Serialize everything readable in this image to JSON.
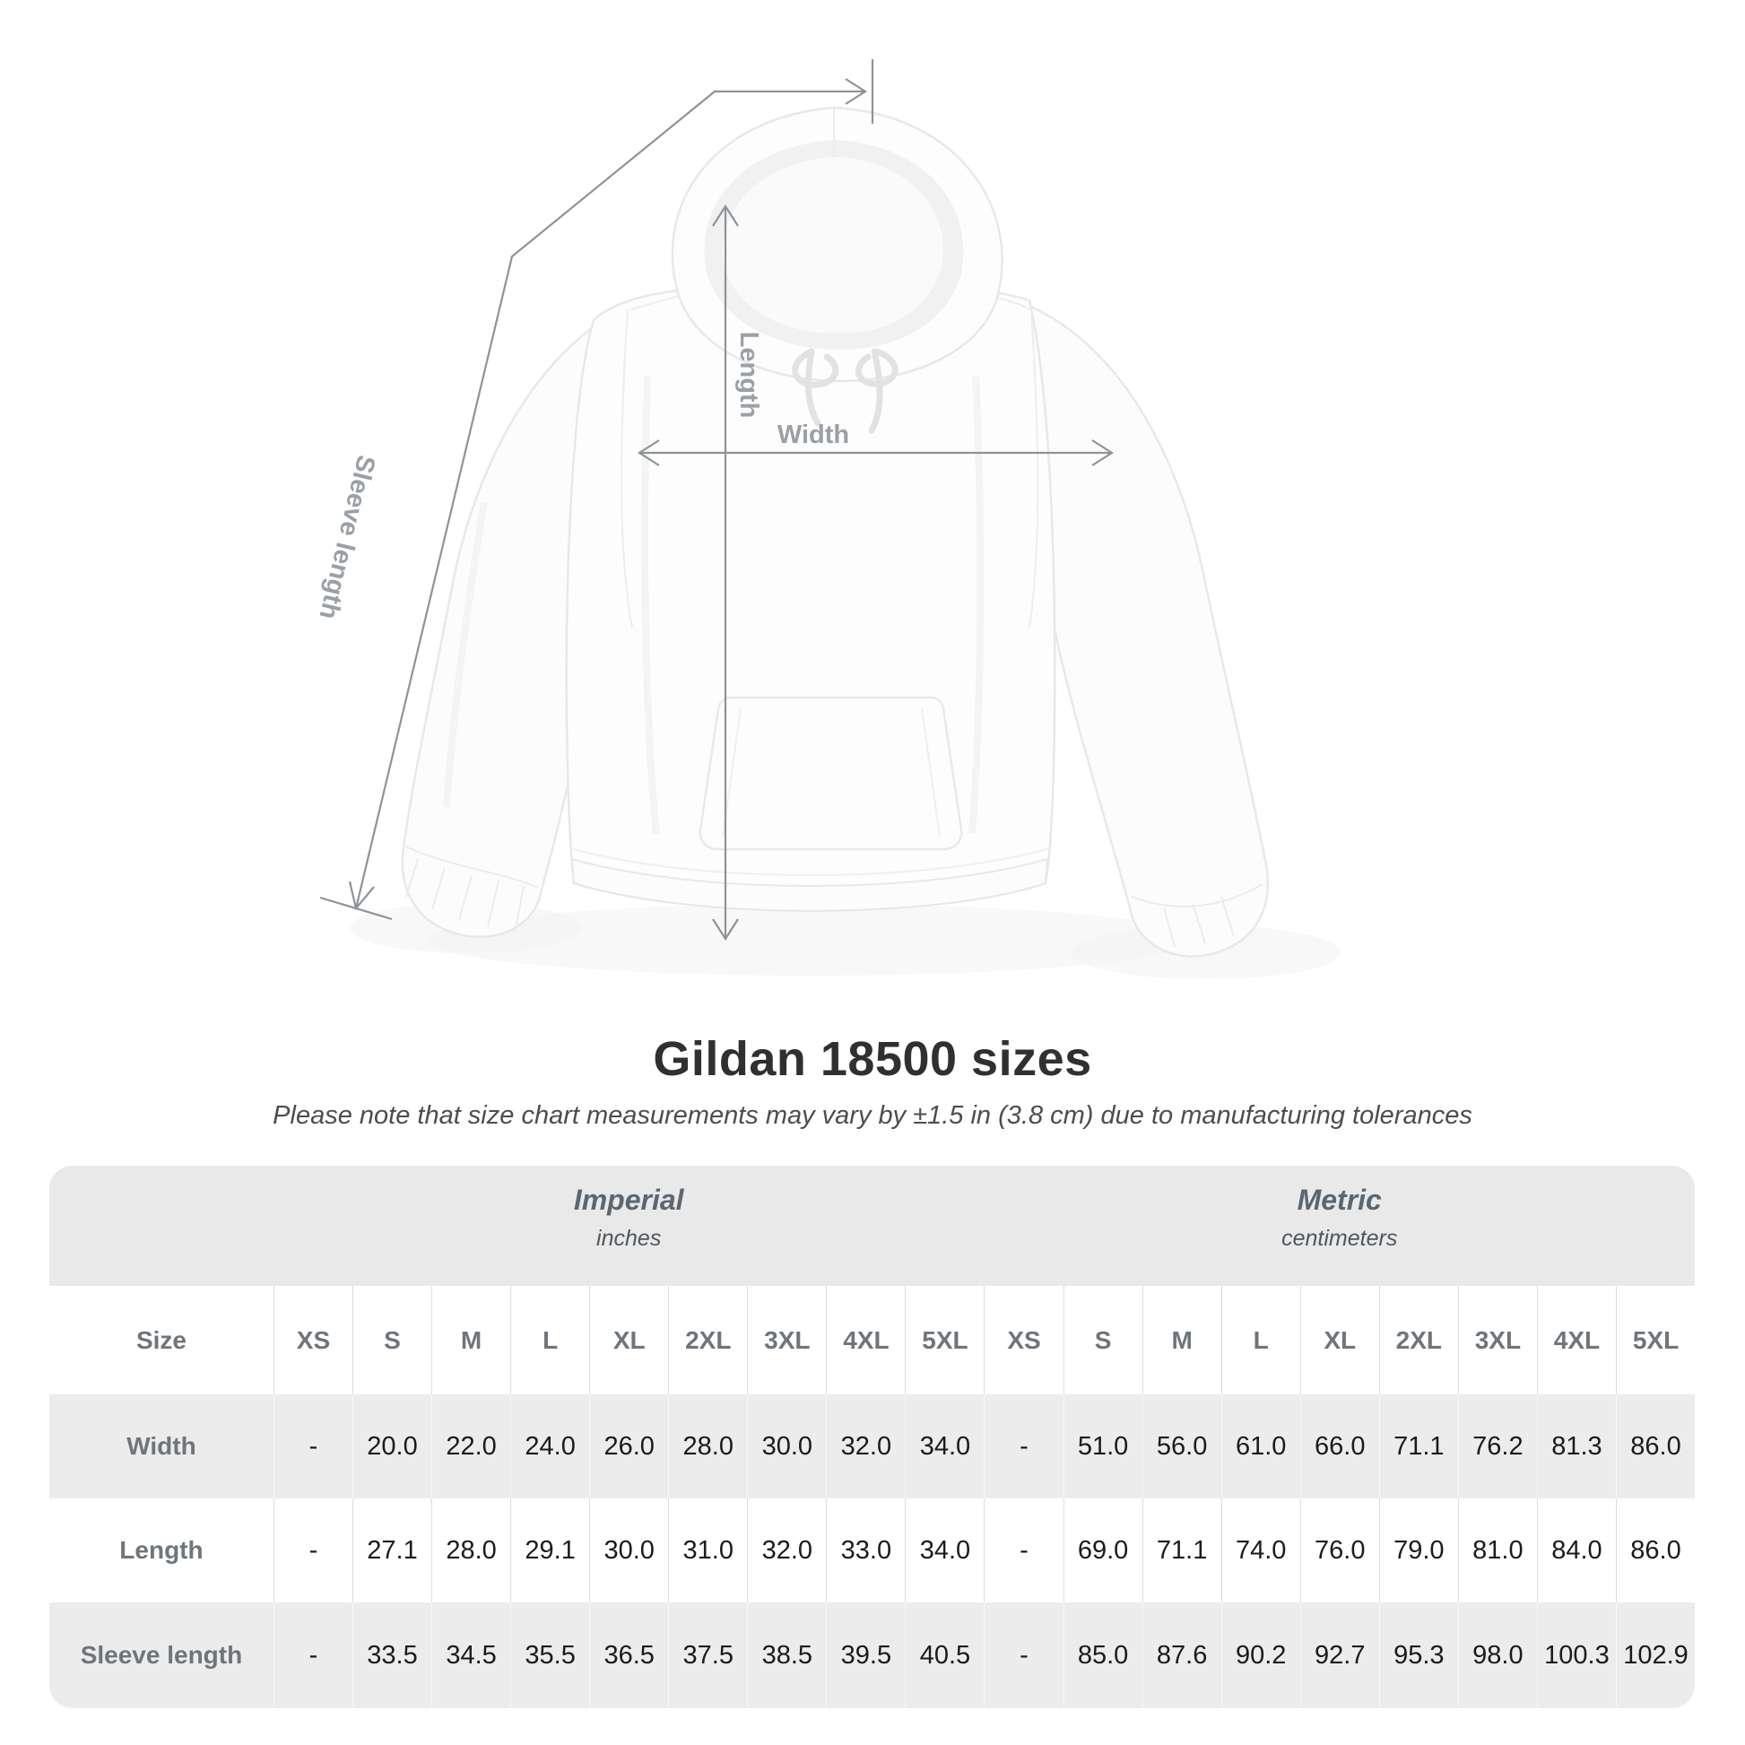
{
  "title": "Gildan 18500 sizes",
  "subtitle": "Please note that size chart measurements may vary by ±1.5 in (3.8 cm) due to manufacturing tolerances",
  "diagram": {
    "labels": {
      "sleeve_length": "Sleeve length",
      "length": "Length",
      "width": "Width"
    },
    "line_color": "#8e9397",
    "label_color": "#9aa0a5"
  },
  "table": {
    "size_header": "Size",
    "sizes": [
      "XS",
      "S",
      "M",
      "L",
      "XL",
      "2XL",
      "3XL",
      "4XL",
      "5XL"
    ],
    "unit_groups": [
      {
        "name": "Imperial",
        "unit": "inches"
      },
      {
        "name": "Metric",
        "unit": "centimeters"
      }
    ],
    "rows": [
      {
        "key": "width",
        "label": "Width",
        "imperial": [
          "-",
          "20.0",
          "22.0",
          "24.0",
          "26.0",
          "28.0",
          "30.0",
          "32.0",
          "34.0"
        ],
        "metric": [
          "-",
          "51.0",
          "56.0",
          "61.0",
          "66.0",
          "71.1",
          "76.2",
          "81.3",
          "86.0"
        ]
      },
      {
        "key": "length",
        "label": "Length",
        "imperial": [
          "-",
          "27.1",
          "28.0",
          "29.1",
          "30.0",
          "31.0",
          "32.0",
          "33.0",
          "34.0"
        ],
        "metric": [
          "-",
          "69.0",
          "71.1",
          "74.0",
          "76.0",
          "79.0",
          "81.0",
          "84.0",
          "86.0"
        ]
      },
      {
        "key": "sleeve-length",
        "label": "Sleeve length",
        "imperial": [
          "-",
          "33.5",
          "34.5",
          "35.5",
          "36.5",
          "37.5",
          "38.5",
          "39.5",
          "40.5"
        ],
        "metric": [
          "-",
          "85.0",
          "87.6",
          "90.2",
          "92.7",
          "95.3",
          "98.0",
          "100.3",
          "102.9"
        ]
      }
    ],
    "colors": {
      "band_bg": "#e9e9e9",
      "stripe_bg": "#ececec",
      "label_text": "#6e757b",
      "value_text": "#1b1b1b"
    }
  }
}
